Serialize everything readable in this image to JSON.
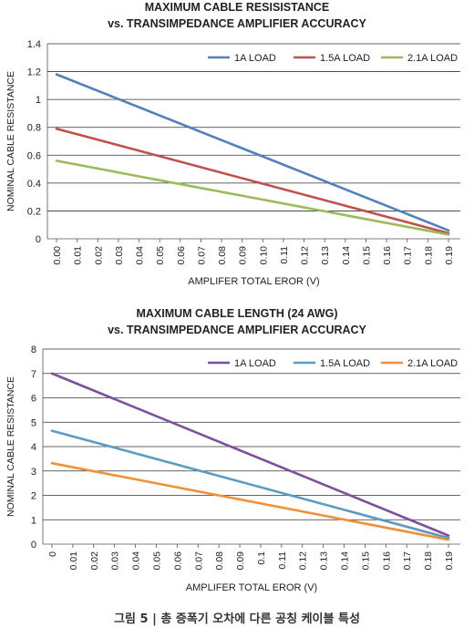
{
  "caption": "그림 5 | 총 증폭기 오차에 다른 공칭 케이블 특성",
  "chart_data": [
    {
      "type": "line",
      "title": "MAXIMUM CABLE RESISISTANCE",
      "subtitle": "vs. TRANSIMPEDANCE AMPLIFIER ACCURACY",
      "xlabel": "AMPLIFER TOTAL EROR (V)",
      "ylabel": "NOMINAL CABLE RESISTANCE",
      "x_ticks": [
        "0.00",
        "0.01",
        "0.02",
        "0.03",
        "0.04",
        "0.05",
        "0.06",
        "0.07",
        "0.08",
        "0.09",
        "0.10",
        "0.11",
        "0.12",
        "0.13",
        "0.14",
        "0.15",
        "0.16",
        "0.17",
        "0.18",
        "0.19"
      ],
      "y_ticks": [
        "0",
        "0.2",
        "0.4",
        "0.6",
        "0.8",
        "1",
        "1.2",
        "1.4"
      ],
      "ylim": [
        0,
        1.4
      ],
      "grid": true,
      "legend": "top-right",
      "series": [
        {
          "name": "1A LOAD",
          "color": "#4f81bd",
          "x": [
            0,
            0.19
          ],
          "values": [
            1.18,
            0.06
          ]
        },
        {
          "name": "1.5A LOAD",
          "color": "#c0504d",
          "x": [
            0,
            0.19
          ],
          "values": [
            0.79,
            0.04
          ]
        },
        {
          "name": "2.1A LOAD",
          "color": "#9bbb59",
          "x": [
            0,
            0.19
          ],
          "values": [
            0.56,
            0.03
          ]
        }
      ]
    },
    {
      "type": "line",
      "title": "MAXIMUM CABLE LENGTH (24 AWG)",
      "subtitle": "vs. TRANSIMPEDANCE AMPLIFIER ACCURACY",
      "xlabel": "AMPLIFER TOTAL EROR (V)",
      "ylabel": "NOMINAL CABLE RESISTANCE",
      "x_ticks": [
        "0",
        "0.01",
        "0.02",
        "0.03",
        "0.04",
        "0.05",
        "0.06",
        "0.07",
        "0.08",
        "0.09",
        "0.1",
        "0.11",
        "0.12",
        "0.13",
        "0.14",
        "0.15",
        "0.16",
        "0.17",
        "0.18",
        "0.19"
      ],
      "y_ticks": [
        "0",
        "1",
        "2",
        "3",
        "4",
        "5",
        "6",
        "7",
        "8"
      ],
      "ylim": [
        0,
        8
      ],
      "grid": true,
      "legend": "top-right",
      "series": [
        {
          "name": "1A LOAD",
          "color": "#7f4f9e",
          "x": [
            0,
            0.19
          ],
          "values": [
            7.0,
            0.35
          ]
        },
        {
          "name": "1.5A LOAD",
          "color": "#5a9ac4",
          "x": [
            0,
            0.19
          ],
          "values": [
            4.65,
            0.25
          ]
        },
        {
          "name": "2.1A LOAD",
          "color": "#f0913a",
          "x": [
            0,
            0.19
          ],
          "values": [
            3.32,
            0.18
          ]
        }
      ]
    }
  ]
}
